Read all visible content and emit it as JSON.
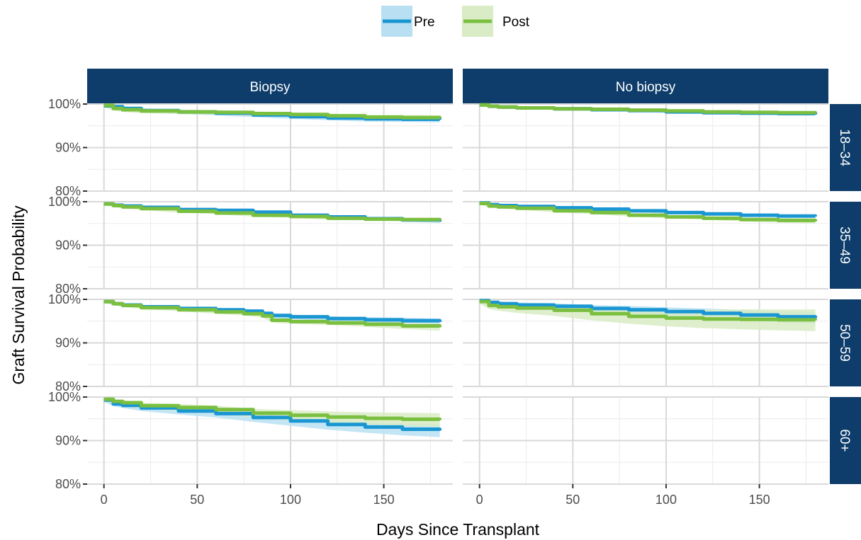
{
  "chart_data": {
    "type": "line",
    "title": "",
    "xlabel": "Days Since Transplant",
    "ylabel": "Graft Survival Probability",
    "xlim": [
      -9,
      187
    ],
    "ylim": [
      0.8,
      1.0
    ],
    "x_ticks": [
      0,
      50,
      100,
      150
    ],
    "x_tick_labels": [
      "0",
      "50",
      "100",
      "150"
    ],
    "y_ticks": [
      0.8,
      0.9,
      1.0
    ],
    "y_tick_labels": [
      "80%",
      "90%",
      "100%"
    ],
    "grid": true,
    "legend_position": "top",
    "legend": [
      {
        "name": "Pre",
        "color": "#1a96d2",
        "fill": "#b9e0f2"
      },
      {
        "name": "Post",
        "color": "#7abf3f",
        "fill": "#d9ecc6"
      }
    ],
    "columns": [
      "Biopsy",
      "No biopsy"
    ],
    "rows": [
      "18–34",
      "35–49",
      "50–59",
      "60+"
    ],
    "panels": [
      {
        "row": 0,
        "col": 0,
        "series": [
          {
            "name": "Pre",
            "x": [
              0,
              5,
              10,
              20,
              40,
              60,
              80,
              100,
              120,
              140,
              160,
              180
            ],
            "y": [
              0.996,
              0.994,
              0.99,
              0.985,
              0.982,
              0.979,
              0.975,
              0.971,
              0.968,
              0.966,
              0.965,
              0.964
            ],
            "lower": [
              0.992,
              0.989,
              0.985,
              0.98,
              0.977,
              0.974,
              0.97,
              0.966,
              0.963,
              0.96,
              0.959,
              0.958
            ],
            "upper": [
              1.0,
              0.999,
              0.995,
              0.99,
              0.987,
              0.984,
              0.98,
              0.976,
              0.973,
              0.972,
              0.971,
              0.97
            ]
          },
          {
            "name": "Post",
            "x": [
              0,
              5,
              10,
              20,
              40,
              60,
              80,
              100,
              120,
              140,
              160,
              180
            ],
            "y": [
              0.997,
              0.99,
              0.987,
              0.984,
              0.982,
              0.981,
              0.978,
              0.976,
              0.973,
              0.97,
              0.969,
              0.968
            ],
            "lower": [
              0.993,
              0.985,
              0.982,
              0.979,
              0.977,
              0.976,
              0.973,
              0.971,
              0.968,
              0.965,
              0.963,
              0.962
            ],
            "upper": [
              1.0,
              0.995,
              0.992,
              0.989,
              0.987,
              0.986,
              0.983,
              0.981,
              0.978,
              0.975,
              0.975,
              0.974
            ]
          }
        ]
      },
      {
        "row": 0,
        "col": 1,
        "series": [
          {
            "name": "Pre",
            "x": [
              0,
              5,
              10,
              20,
              40,
              60,
              80,
              100,
              120,
              140,
              160,
              180
            ],
            "y": [
              0.998,
              0.995,
              0.993,
              0.991,
              0.989,
              0.987,
              0.985,
              0.982,
              0.98,
              0.979,
              0.978,
              0.976
            ],
            "lower": [
              0.996,
              0.993,
              0.991,
              0.989,
              0.987,
              0.985,
              0.983,
              0.98,
              0.978,
              0.977,
              0.976,
              0.974
            ],
            "upper": [
              1.0,
              0.997,
              0.995,
              0.993,
              0.991,
              0.989,
              0.987,
              0.984,
              0.982,
              0.981,
              0.98,
              0.978
            ]
          },
          {
            "name": "Post",
            "x": [
              0,
              5,
              10,
              20,
              40,
              60,
              80,
              100,
              120,
              140,
              160,
              180
            ],
            "y": [
              0.998,
              0.995,
              0.993,
              0.991,
              0.989,
              0.988,
              0.986,
              0.984,
              0.982,
              0.981,
              0.98,
              0.979
            ],
            "lower": [
              0.996,
              0.993,
              0.991,
              0.989,
              0.987,
              0.986,
              0.984,
              0.982,
              0.98,
              0.978,
              0.977,
              0.976
            ],
            "upper": [
              1.0,
              0.997,
              0.995,
              0.993,
              0.991,
              0.99,
              0.988,
              0.986,
              0.984,
              0.984,
              0.983,
              0.982
            ]
          }
        ]
      },
      {
        "row": 1,
        "col": 0,
        "series": [
          {
            "name": "Pre",
            "x": [
              0,
              5,
              10,
              20,
              40,
              60,
              80,
              100,
              120,
              140,
              160,
              180
            ],
            "y": [
              0.995,
              0.992,
              0.99,
              0.987,
              0.982,
              0.98,
              0.976,
              0.969,
              0.965,
              0.961,
              0.958,
              0.954
            ],
            "lower": [
              0.992,
              0.989,
              0.987,
              0.984,
              0.979,
              0.977,
              0.973,
              0.966,
              0.962,
              0.958,
              0.955,
              0.951
            ],
            "upper": [
              0.998,
              0.995,
              0.993,
              0.99,
              0.985,
              0.983,
              0.979,
              0.972,
              0.968,
              0.964,
              0.961,
              0.957
            ]
          },
          {
            "name": "Post",
            "x": [
              0,
              5,
              10,
              20,
              40,
              60,
              80,
              100,
              120,
              140,
              160,
              180
            ],
            "y": [
              0.995,
              0.991,
              0.988,
              0.984,
              0.978,
              0.974,
              0.969,
              0.966,
              0.962,
              0.96,
              0.959,
              0.957
            ],
            "lower": [
              0.992,
              0.988,
              0.985,
              0.981,
              0.975,
              0.971,
              0.966,
              0.963,
              0.959,
              0.957,
              0.956,
              0.954
            ],
            "upper": [
              0.998,
              0.994,
              0.991,
              0.987,
              0.981,
              0.977,
              0.972,
              0.969,
              0.965,
              0.963,
              0.962,
              0.96
            ]
          }
        ]
      },
      {
        "row": 1,
        "col": 1,
        "series": [
          {
            "name": "Pre",
            "x": [
              0,
              5,
              10,
              20,
              40,
              60,
              80,
              100,
              120,
              140,
              160,
              180
            ],
            "y": [
              0.997,
              0.993,
              0.991,
              0.989,
              0.986,
              0.983,
              0.979,
              0.975,
              0.972,
              0.969,
              0.967,
              0.966
            ],
            "lower": [
              0.995,
              0.991,
              0.989,
              0.987,
              0.984,
              0.981,
              0.977,
              0.973,
              0.97,
              0.967,
              0.965,
              0.964
            ],
            "upper": [
              0.999,
              0.995,
              0.993,
              0.991,
              0.988,
              0.985,
              0.981,
              0.977,
              0.974,
              0.971,
              0.969,
              0.968
            ]
          },
          {
            "name": "Post",
            "x": [
              0,
              5,
              10,
              20,
              40,
              60,
              80,
              100,
              120,
              140,
              160,
              180
            ],
            "y": [
              0.996,
              0.99,
              0.988,
              0.985,
              0.979,
              0.975,
              0.969,
              0.965,
              0.962,
              0.959,
              0.957,
              0.955
            ],
            "lower": [
              0.994,
              0.988,
              0.985,
              0.982,
              0.976,
              0.972,
              0.966,
              0.962,
              0.959,
              0.955,
              0.952,
              0.95
            ],
            "upper": [
              0.998,
              0.992,
              0.991,
              0.988,
              0.982,
              0.978,
              0.972,
              0.968,
              0.965,
              0.963,
              0.962,
              0.96
            ]
          }
        ]
      },
      {
        "row": 2,
        "col": 0,
        "series": [
          {
            "name": "Pre",
            "x": [
              0,
              5,
              10,
              20,
              40,
              60,
              75,
              85,
              90,
              100,
              120,
              140,
              160,
              180
            ],
            "y": [
              0.995,
              0.99,
              0.987,
              0.983,
              0.979,
              0.976,
              0.973,
              0.968,
              0.963,
              0.96,
              0.956,
              0.953,
              0.951,
              0.948
            ],
            "lower": [
              0.992,
              0.987,
              0.984,
              0.98,
              0.976,
              0.972,
              0.969,
              0.964,
              0.958,
              0.955,
              0.951,
              0.947,
              0.944,
              0.94
            ],
            "upper": [
              0.998,
              0.993,
              0.99,
              0.986,
              0.982,
              0.98,
              0.977,
              0.972,
              0.968,
              0.965,
              0.961,
              0.959,
              0.958,
              0.956
            ]
          },
          {
            "name": "Post",
            "x": [
              0,
              5,
              10,
              20,
              40,
              60,
              75,
              85,
              90,
              100,
              120,
              140,
              160,
              180
            ],
            "y": [
              0.995,
              0.99,
              0.986,
              0.981,
              0.976,
              0.971,
              0.967,
              0.962,
              0.952,
              0.949,
              0.946,
              0.943,
              0.939,
              0.936
            ],
            "lower": [
              0.992,
              0.987,
              0.983,
              0.978,
              0.973,
              0.967,
              0.963,
              0.958,
              0.947,
              0.944,
              0.941,
              0.937,
              0.932,
              0.928
            ],
            "upper": [
              0.998,
              0.993,
              0.989,
              0.984,
              0.979,
              0.975,
              0.971,
              0.966,
              0.957,
              0.954,
              0.951,
              0.949,
              0.946,
              0.944
            ]
          }
        ]
      },
      {
        "row": 2,
        "col": 1,
        "series": [
          {
            "name": "Pre",
            "x": [
              0,
              5,
              10,
              20,
              40,
              60,
              80,
              100,
              120,
              140,
              160,
              180
            ],
            "y": [
              0.997,
              0.993,
              0.99,
              0.987,
              0.984,
              0.979,
              0.976,
              0.972,
              0.968,
              0.964,
              0.96,
              0.957
            ],
            "lower": [
              0.994,
              0.989,
              0.985,
              0.981,
              0.977,
              0.971,
              0.967,
              0.962,
              0.957,
              0.952,
              0.947,
              0.943
            ],
            "upper": [
              1.0,
              0.997,
              0.995,
              0.993,
              0.991,
              0.987,
              0.985,
              0.982,
              0.979,
              0.976,
              0.973,
              0.971
            ]
          },
          {
            "name": "Post",
            "x": [
              0,
              5,
              10,
              20,
              40,
              60,
              80,
              100,
              120,
              140,
              160,
              180
            ],
            "y": [
              0.995,
              0.986,
              0.983,
              0.98,
              0.975,
              0.967,
              0.961,
              0.957,
              0.955,
              0.954,
              0.953,
              0.952
            ],
            "lower": [
              0.99,
              0.978,
              0.974,
              0.969,
              0.962,
              0.952,
              0.944,
              0.938,
              0.934,
              0.931,
              0.929,
              0.927
            ],
            "upper": [
              1.0,
              0.994,
              0.992,
              0.991,
              0.988,
              0.982,
              0.978,
              0.976,
              0.976,
              0.977,
              0.977,
              0.977
            ]
          }
        ]
      },
      {
        "row": 3,
        "col": 0,
        "series": [
          {
            "name": "Pre",
            "x": [
              0,
              5,
              10,
              20,
              40,
              60,
              80,
              100,
              120,
              140,
              160,
              180
            ],
            "y": [
              0.993,
              0.984,
              0.981,
              0.975,
              0.968,
              0.962,
              0.953,
              0.945,
              0.937,
              0.931,
              0.926,
              0.923
            ],
            "lower": [
              0.989,
              0.979,
              0.975,
              0.968,
              0.96,
              0.953,
              0.943,
              0.934,
              0.925,
              0.918,
              0.912,
              0.908
            ],
            "upper": [
              0.997,
              0.989,
              0.987,
              0.982,
              0.976,
              0.971,
              0.963,
              0.956,
              0.949,
              0.944,
              0.94,
              0.938
            ]
          },
          {
            "name": "Post",
            "x": [
              0,
              5,
              10,
              20,
              40,
              60,
              80,
              100,
              120,
              140,
              160,
              180
            ],
            "y": [
              0.995,
              0.99,
              0.987,
              0.98,
              0.976,
              0.971,
              0.963,
              0.958,
              0.954,
              0.951,
              0.949,
              0.947
            ],
            "lower": [
              0.991,
              0.985,
              0.981,
              0.973,
              0.968,
              0.962,
              0.953,
              0.946,
              0.941,
              0.937,
              0.934,
              0.931
            ],
            "upper": [
              0.999,
              0.995,
              0.993,
              0.987,
              0.984,
              0.98,
              0.973,
              0.97,
              0.967,
              0.965,
              0.964,
              0.963
            ]
          }
        ]
      },
      {
        "row": 3,
        "col": 1,
        "series": []
      }
    ]
  }
}
